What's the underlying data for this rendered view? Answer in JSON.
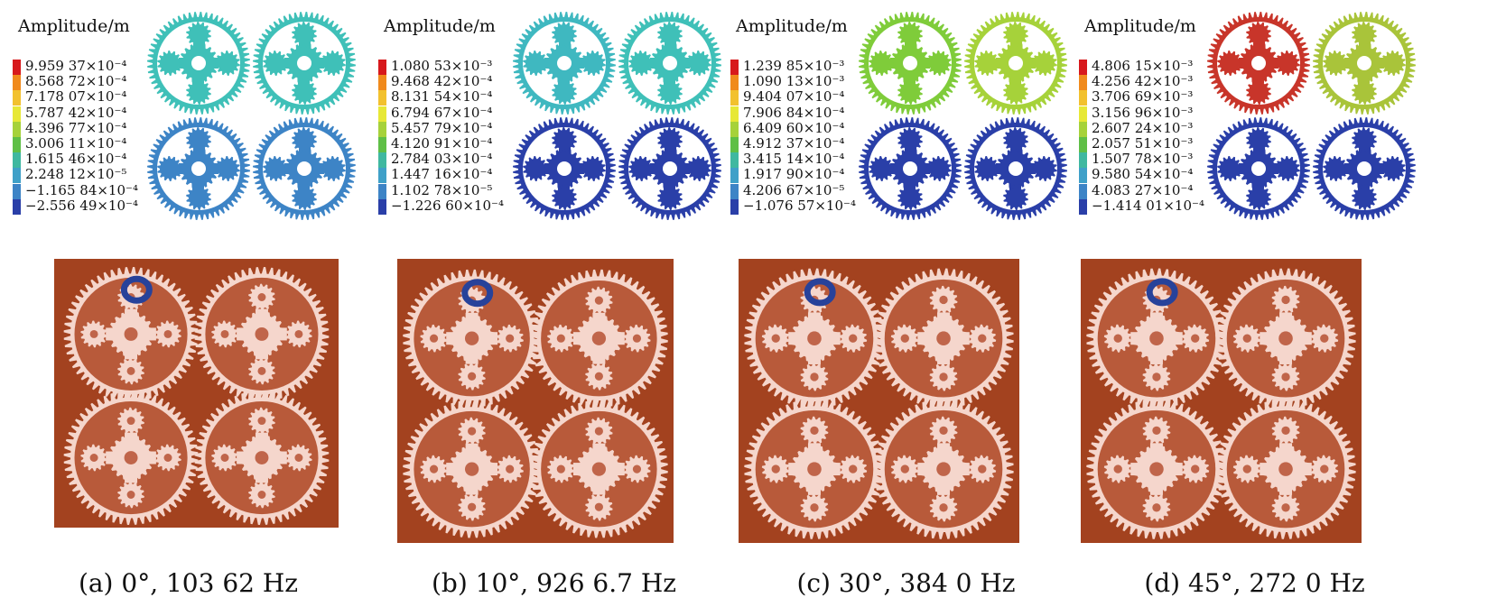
{
  "panels": [
    {
      "legend_title": "Amplitude/m",
      "legend_values": [
        "9.959 37×10⁻⁴",
        "8.568 72×10⁻⁴",
        "7.178 07×10⁻⁴",
        "5.787 42×10⁻⁴",
        "4.396 77×10⁻⁴",
        "3.006 11×10⁻⁴",
        "1.615 46×10⁻⁴",
        "2.248 12×10⁻⁵",
        "−1.165 84×10⁻⁴",
        "−2.556 49×10⁻⁴"
      ],
      "caption": "(a) 0°, 103 62 Hz",
      "gear_colors": [
        "#3fc0b8",
        "#3fc0b8",
        "#3d84c6",
        "#3d84c6"
      ]
    },
    {
      "legend_title": "Amplitude/m",
      "legend_values": [
        "1.080 53×10⁻³",
        "9.468 42×10⁻⁴",
        "8.131 54×10⁻⁴",
        "6.794 67×10⁻⁴",
        "5.457 79×10⁻⁴",
        "4.120 91×10⁻⁴",
        "2.784 03×10⁻⁴",
        "1.447 16×10⁻⁴",
        "1.102 78×10⁻⁵",
        "−1.226 60×10⁻⁴"
      ],
      "caption": "(b) 10°, 926 6.7 Hz",
      "gear_colors": [
        "#3fb8c0",
        "#3fc0b8",
        "#2a3fa8",
        "#2a3fa8"
      ]
    },
    {
      "legend_title": "Amplitude/m",
      "legend_values": [
        "1.239 85×10⁻³",
        "1.090 13×10⁻³",
        "9.404 07×10⁻⁴",
        "7.906 84×10⁻⁴",
        "6.409 60×10⁻⁴",
        "4.912 37×10⁻⁴",
        "3.415 14×10⁻⁴",
        "1.917 90×10⁻⁴",
        "4.206 67×10⁻⁵",
        "−1.076 57×10⁻⁴"
      ],
      "caption": "(c) 30°, 384 0 Hz",
      "gear_colors": [
        "#7fcc3a",
        "#a6d23a",
        "#2a3fa8",
        "#2a3fa8"
      ]
    },
    {
      "legend_title": "Amplitude/m",
      "legend_values": [
        "4.806 15×10⁻³",
        "4.256 42×10⁻³",
        "3.706 69×10⁻³",
        "3.156 96×10⁻³",
        "2.607 24×10⁻³",
        "2.057 51×10⁻³",
        "1.507 78×10⁻³",
        "9.580 54×10⁻⁴",
        "4.083 27×10⁻⁴",
        "−1.414 01×10⁻⁴"
      ],
      "caption": "(d) 45°, 272 0 Hz",
      "gear_colors": [
        "#c8352a",
        "#a9c43a",
        "#2a3fa8",
        "#2a3fa8"
      ]
    }
  ],
  "legend_colors": [
    "#d7191c",
    "#f08a1c",
    "#f2c12e",
    "#e7e836",
    "#a6d23a",
    "#5fbf46",
    "#3fb8a0",
    "#3fa0c8",
    "#3d84c6",
    "#2a3fa8"
  ],
  "photo_bg": "#a3421f",
  "photo_gear": "#f5d6cc",
  "marker_color": "#27429a"
}
